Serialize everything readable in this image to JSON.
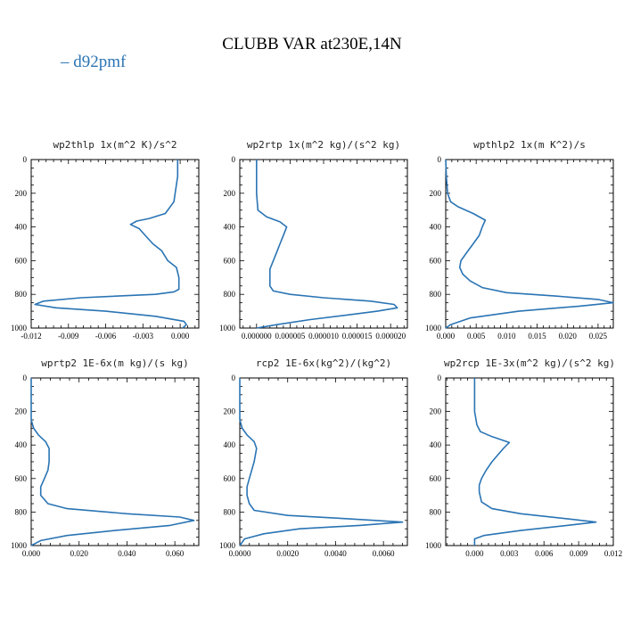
{
  "figure": {
    "title": "CLUBB VAR at230E,14N",
    "legend": [
      {
        "name": "d92pmf",
        "color": "#2a74b4"
      }
    ],
    "line_color": "#2a74b4"
  },
  "chart_data": [
    {
      "type": "line",
      "title": "wp2thlp  1x(m^2 K)/s^2",
      "xlim": [
        -0.012,
        0.0015
      ],
      "ylim": [
        1000,
        0
      ],
      "xticks": [
        -0.012,
        -0.009,
        -0.006,
        -0.003,
        0.0
      ],
      "xtick_labels": [
        "-0.012",
        "-0.009",
        "-0.006",
        "-0.003",
        "0.000"
      ],
      "yticks": [
        0,
        200,
        400,
        600,
        800,
        1000
      ],
      "series": [
        {
          "x": [
            -0.0002,
            -0.0002,
            -0.0003,
            -0.0005,
            -0.0012,
            -0.0025,
            -0.0035,
            -0.004,
            -0.0033,
            -0.0027,
            -0.0022,
            -0.0015,
            -0.001,
            -0.0003,
            -0.0001,
            -0.0001,
            -0.0005,
            -0.002,
            -0.008,
            -0.011,
            -0.0117,
            -0.01,
            -0.006,
            -0.002,
            0.0003,
            0.0005,
            0.0002
          ],
          "y": [
            0,
            100,
            150,
            250,
            320,
            350,
            365,
            385,
            410,
            460,
            500,
            540,
            600,
            640,
            700,
            770,
            785,
            800,
            820,
            840,
            860,
            880,
            900,
            930,
            960,
            980,
            1000
          ]
        }
      ]
    },
    {
      "type": "line",
      "title": "wp2rtp  1x(m^2 kg)/(s^2 kg)",
      "xlim": [
        -2.5e-06,
        2.25e-05
      ],
      "ylim": [
        1000,
        0
      ],
      "xticks": [
        0.0,
        5e-06,
        1e-05,
        1.5e-05,
        2e-05
      ],
      "xtick_labels": [
        "0.000000",
        "0.000005",
        "0.000010",
        "0.000015",
        "0.000020"
      ],
      "yticks": [
        0,
        200,
        400,
        600,
        800,
        1000
      ],
      "series": [
        {
          "x": [
            0.0,
            0.0,
            0.0,
            2e-07,
            1.5e-06,
            3.5e-06,
            4.5e-06,
            4e-06,
            3.5e-06,
            3e-06,
            2.5e-06,
            2e-06,
            2e-06,
            2e-06,
            2.5e-06,
            5e-06,
            1e-05,
            1.7e-05,
            2.05e-05,
            2.1e-05,
            1.8e-05,
            1.4e-05,
            8e-06,
            3e-06,
            0.0
          ],
          "y": [
            0,
            100,
            200,
            300,
            340,
            370,
            400,
            450,
            500,
            550,
            600,
            650,
            700,
            750,
            780,
            800,
            820,
            840,
            860,
            880,
            900,
            920,
            950,
            980,
            1000
          ]
        }
      ]
    },
    {
      "type": "line",
      "title": "wpthlp2  1x(m K^2)/s",
      "xlim": [
        0.0,
        0.0275
      ],
      "ylim": [
        1000,
        0
      ],
      "xticks": [
        0.0,
        0.005,
        0.01,
        0.015,
        0.02,
        0.025
      ],
      "xtick_labels": [
        "0.000",
        "0.005",
        "0.010",
        "0.015",
        "0.020",
        "0.025"
      ],
      "yticks": [
        0,
        200,
        400,
        600,
        800,
        1000
      ],
      "series": [
        {
          "x": [
            0.0,
            0.0001,
            0.0003,
            0.0008,
            0.002,
            0.0045,
            0.0065,
            0.006,
            0.0055,
            0.0045,
            0.0035,
            0.0025,
            0.0023,
            0.0028,
            0.004,
            0.006,
            0.01,
            0.018,
            0.025,
            0.0275,
            0.022,
            0.012,
            0.004,
            0.0008,
            0.0
          ],
          "y": [
            0,
            100,
            200,
            250,
            280,
            320,
            360,
            400,
            450,
            500,
            550,
            600,
            640,
            680,
            720,
            760,
            790,
            810,
            830,
            850,
            870,
            900,
            940,
            980,
            1000
          ]
        }
      ]
    },
    {
      "type": "line",
      "title": "wprtp2  1E-6x(m kg)/(s kg)",
      "xlim": [
        0.0,
        0.07
      ],
      "ylim": [
        1000,
        0
      ],
      "xticks": [
        0.0,
        0.02,
        0.04,
        0.06
      ],
      "xtick_labels": [
        "0.000",
        "0.020",
        "0.040",
        "0.060"
      ],
      "yticks": [
        0,
        200,
        400,
        600,
        800,
        1000
      ],
      "series": [
        {
          "x": [
            0.0,
            0.0,
            0.0,
            0.001,
            0.003,
            0.006,
            0.0075,
            0.0075,
            0.007,
            0.0055,
            0.004,
            0.004,
            0.007,
            0.015,
            0.04,
            0.062,
            0.068,
            0.058,
            0.035,
            0.015,
            0.004,
            0.0
          ],
          "y": [
            0,
            100,
            250,
            300,
            340,
            380,
            420,
            500,
            550,
            600,
            650,
            700,
            750,
            780,
            810,
            830,
            850,
            880,
            910,
            940,
            970,
            1000
          ]
        }
      ]
    },
    {
      "type": "line",
      "title": "rcp2  1E-6x(kg^2)/(kg^2)",
      "xlim": [
        0.0,
        0.007
      ],
      "ylim": [
        1000,
        0
      ],
      "xticks": [
        0.0,
        0.002,
        0.004,
        0.006
      ],
      "xtick_labels": [
        "0.0000",
        "0.0020",
        "0.0040",
        "0.0060"
      ],
      "yticks": [
        0,
        200,
        400,
        600,
        800,
        1000
      ],
      "series": [
        {
          "x": [
            0.0,
            0.0,
            0.0,
            0.0001,
            0.0003,
            0.0006,
            0.0007,
            0.0006,
            0.0005,
            0.0004,
            0.0003,
            0.0003,
            0.0004,
            0.0006,
            0.002,
            0.0045,
            0.0068,
            0.005,
            0.0025,
            0.001,
            0.0002,
            0.0
          ],
          "y": [
            0,
            100,
            250,
            300,
            340,
            380,
            420,
            500,
            550,
            600,
            650,
            700,
            750,
            790,
            820,
            840,
            860,
            880,
            900,
            930,
            960,
            1000
          ]
        }
      ]
    },
    {
      "type": "line",
      "title": "wp2rcp  1E-3x(m^2 kg)/(s^2 kg)",
      "xlim": [
        -0.0025,
        0.012
      ],
      "ylim": [
        1000,
        0
      ],
      "xticks": [
        0.0,
        0.003,
        0.006,
        0.009,
        0.012
      ],
      "xtick_labels": [
        "0.000",
        "0.003",
        "0.006",
        "0.009",
        "0.012"
      ],
      "yticks": [
        0,
        200,
        400,
        600,
        800,
        1000
      ],
      "series": [
        {
          "x": [
            0.0,
            0.0,
            0.0,
            0.0002,
            0.0005,
            0.0015,
            0.003,
            0.0025,
            0.002,
            0.0015,
            0.001,
            0.0006,
            0.0004,
            0.0004,
            0.0006,
            0.0015,
            0.004,
            0.008,
            0.0105,
            0.008,
            0.004,
            0.0008,
            0.0,
            0.0
          ],
          "y": [
            0,
            100,
            200,
            280,
            320,
            350,
            385,
            420,
            460,
            500,
            550,
            600,
            640,
            680,
            740,
            780,
            810,
            840,
            860,
            880,
            910,
            940,
            960,
            1000
          ]
        }
      ]
    }
  ]
}
